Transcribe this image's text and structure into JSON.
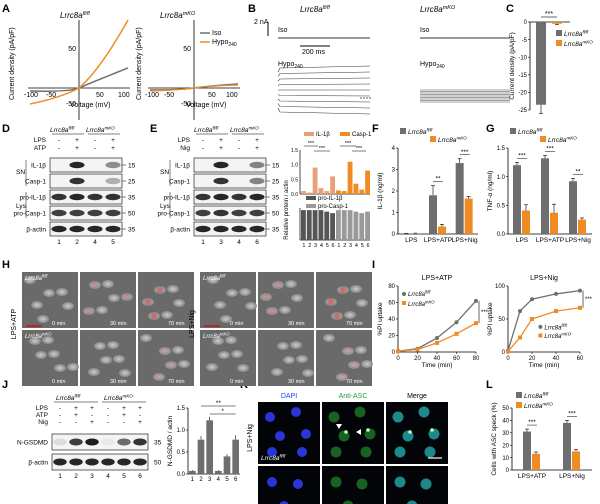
{
  "figure": {
    "panel_letters": [
      "A",
      "B",
      "C",
      "D",
      "E",
      "F",
      "G",
      "H",
      "I",
      "J",
      "K",
      "L"
    ],
    "genotypes": {
      "fl": "Lrrc8a",
      "fl_sup": "fl/fl",
      "ko": "Lrrc8a",
      "ko_sup": "mKO"
    },
    "colors": {
      "fl": "#6e6e6e",
      "ko": "#f08a24",
      "grid": "#999999"
    },
    "panelA": {
      "ylabel": "Current density (pA/pF)",
      "xlabel": "Voltage (mV)",
      "xticks": [
        "-100",
        "-50",
        "50",
        "100"
      ],
      "yticks": [
        "50",
        "-50"
      ],
      "legend": [
        "Iso",
        "Hypo"
      ],
      "legend_sub": "240"
    },
    "panelB": {
      "scale_v": "2 nA",
      "scale_t": "200 ms",
      "iso": "Iso",
      "hypo": "Hypo",
      "hypo_sub": "240"
    },
    "panelD": {
      "rows_top": [
        "LPS",
        "ATP"
      ],
      "signs": [
        [
          "-",
          "+",
          "-",
          "+"
        ],
        [
          "-",
          "+",
          "-",
          "+"
        ]
      ],
      "blots": [
        "IL-1β",
        "Casp-1",
        "pro-IL-1β",
        "pro-Casp-1",
        "β-actin"
      ],
      "groups": [
        "SN",
        "Lys"
      ],
      "mw": [
        "15",
        "25",
        "35",
        "50",
        "35"
      ],
      "lanes": [
        "1",
        "2",
        "4",
        "5"
      ]
    },
    "panelE": {
      "rows_top": [
        "LPS",
        "Nig"
      ],
      "signs": [
        [
          "-",
          "+",
          "-",
          "+"
        ],
        [
          "-",
          "+",
          "-",
          "+"
        ]
      ],
      "blots": [
        "IL-1β",
        "Casp-1",
        "pro-IL-1β",
        "pro-Casp-1",
        "β-actin"
      ],
      "groups": [
        "SN",
        "Lys"
      ],
      "mw": [
        "15",
        "25",
        "35",
        "50",
        "35"
      ],
      "lanes": [
        "1",
        "3",
        "4",
        "6"
      ],
      "chart_ylabel": "Relative protein / actin",
      "legend_top": [
        "IL-1β",
        "Casp-1"
      ],
      "legend_bottom": [
        "pro-IL-1β",
        "pro-Casp-1"
      ],
      "xticks": [
        "1",
        "2",
        "3",
        "4",
        "5",
        "6",
        "1",
        "2",
        "3",
        "4",
        "5",
        "6"
      ],
      "sig": [
        "***",
        "***",
        "***",
        "***"
      ]
    },
    "panelK": {
      "stains": [
        "DAPI",
        "Anti-ASC",
        "Merge"
      ],
      "treatment": "LPS+Nig"
    },
    "panelH": {
      "left_treatment": "LPS+ATP",
      "right_treatment": "LPS+Nig",
      "times": [
        "0 min",
        "30 min",
        "70 min"
      ]
    },
    "panelJ": {
      "rows_top": [
        "LPS",
        "ATP",
        "Nig"
      ],
      "signs": [
        [
          "-",
          "+",
          "+",
          "-",
          "+",
          "+"
        ],
        [
          "-",
          "+",
          "-",
          "-",
          "+",
          "-"
        ],
        [
          "-",
          "-",
          "+",
          "-",
          "-",
          "+"
        ]
      ],
      "blots": [
        "N-GSDMD",
        "β-actin"
      ],
      "mw": [
        "35",
        "50"
      ],
      "lanes": [
        "1",
        "2",
        "3",
        "4",
        "5",
        "6"
      ]
    }
  },
  "chart_data": [
    {
      "id": "C",
      "type": "bar",
      "categories": [
        "Lrrc8a fl/fl",
        "Lrrc8a mKO"
      ],
      "values": [
        -23.5,
        -0.5
      ],
      "errors": [
        2.5,
        0.2
      ],
      "ylabel": "Current density (pA/pF)",
      "yticks": [
        "0",
        "-5",
        "-10",
        "-15",
        "-20",
        "-25"
      ],
      "ylim": [
        -25,
        0
      ],
      "sig": "***",
      "legend": [
        "Lrrc8a fl/fl",
        "Lrrc8a mKO"
      ]
    },
    {
      "id": "F",
      "type": "bar",
      "categories": [
        "LPS",
        "LPS+ATP",
        "LPS+Nig"
      ],
      "series": [
        {
          "name": "Lrrc8a fl/fl",
          "values": [
            0.02,
            1.8,
            3.3
          ],
          "errors": [
            0.01,
            0.45,
            0.2
          ]
        },
        {
          "name": "Lrrc8a mKO",
          "values": [
            0.03,
            0.35,
            1.65
          ],
          "errors": [
            0.01,
            0.1,
            0.1
          ]
        }
      ],
      "ylabel": "IL-1β (ng/ml)",
      "yticks": [
        "0",
        "1",
        "2",
        "3",
        "4"
      ],
      "ylim": [
        0,
        4
      ],
      "sig": [
        "",
        "**",
        "***"
      ]
    },
    {
      "id": "G",
      "type": "bar",
      "categories": [
        "LPS",
        "LPS+ATP",
        "LPS+Nig"
      ],
      "series": [
        {
          "name": "Lrrc8a fl/fl",
          "values": [
            1.2,
            1.32,
            0.92
          ],
          "errors": [
            0.05,
            0.05,
            0.05
          ]
        },
        {
          "name": "Lrrc8a mKO",
          "values": [
            0.41,
            0.37,
            0.25
          ],
          "errors": [
            0.1,
            0.15,
            0.03
          ]
        }
      ],
      "ylabel": "TNF-α (ng/ml)",
      "yticks": [
        "0.0",
        "0.5",
        "1.0",
        "1.5"
      ],
      "ylim": [
        0,
        1.5
      ],
      "sig": [
        "***",
        "***",
        "**"
      ]
    },
    {
      "id": "I1",
      "type": "line",
      "title": "LPS+ATP",
      "x": [
        0,
        20,
        40,
        60,
        80
      ],
      "series": [
        {
          "name": "Lrrc8a fl/fl",
          "values": [
            1,
            4,
            17,
            36,
            62
          ]
        },
        {
          "name": "Lrrc8a mKO",
          "values": [
            1,
            3,
            11,
            22,
            35
          ]
        }
      ],
      "xlabel": "Time (min)",
      "ylabel": "%PI uptake",
      "xticks": [
        "0",
        "20",
        "40",
        "60",
        "80"
      ],
      "yticks": [
        "0",
        "20",
        "40",
        "60",
        "80"
      ],
      "ylim": [
        0,
        80
      ],
      "sig": "***"
    },
    {
      "id": "I2",
      "type": "line",
      "title": "LPS+Nig",
      "x": [
        0,
        10,
        20,
        40,
        60
      ],
      "series": [
        {
          "name": "Lrrc8a fl/fl",
          "values": [
            2,
            62,
            80,
            88,
            93
          ]
        },
        {
          "name": "Lrrc8a mKO",
          "values": [
            1,
            22,
            50,
            62,
            67
          ]
        }
      ],
      "xlabel": "Time (min)",
      "ylabel": "%PI uptake",
      "xticks": [
        "0",
        "20",
        "40",
        "60"
      ],
      "yticks": [
        "0",
        "50",
        "100"
      ],
      "ylim": [
        0,
        100
      ],
      "sig": "***",
      "legend": [
        "Lrrc8a fl/fl",
        "Lrrc8a mKO"
      ]
    },
    {
      "id": "E",
      "type": "bar",
      "categories": [
        "1",
        "2",
        "3",
        "4",
        "5",
        "6",
        "1",
        "2",
        "3",
        "4",
        "5",
        "6"
      ],
      "series": [
        {
          "name": "IL-1β",
          "values": [
            0.1,
            0.05,
            0.9,
            0.2,
            0.1,
            0.6,
            0,
            0,
            0,
            0,
            0,
            0
          ]
        },
        {
          "name": "Casp-1",
          "values": [
            0,
            0,
            0,
            0,
            0,
            0,
            0.12,
            0.1,
            1.1,
            0.35,
            0.15,
            0.8
          ]
        },
        {
          "name": "pro-IL-1β",
          "values": [
            1.0,
            1.0,
            1.0,
            1.0,
            0.95,
            0.9,
            0,
            0,
            0,
            0,
            0,
            0
          ]
        },
        {
          "name": "pro-Casp-1",
          "values": [
            0,
            0,
            0,
            0,
            0,
            0,
            1.0,
            1.0,
            1.0,
            0.95,
            0.9,
            0.95
          ]
        }
      ],
      "ylabel": "Relative protein / actin",
      "yticks": [
        "0.0",
        "0.5",
        "1.0",
        "1.5"
      ],
      "ylim": [
        0,
        1.5
      ],
      "sig": [
        "***",
        "***",
        "***",
        "***"
      ]
    },
    {
      "id": "J",
      "type": "bar",
      "categories": [
        "1",
        "2",
        "3",
        "4",
        "5",
        "6"
      ],
      "values": [
        0.07,
        0.78,
        1.22,
        0.07,
        0.4,
        0.78
      ],
      "errors": [
        0.02,
        0.08,
        0.08,
        0.02,
        0.05,
        0.1
      ],
      "ylabel": "N-GSDMD / actin",
      "yticks": [
        "0.0",
        "0.5",
        "1.0",
        "1.5"
      ],
      "ylim": [
        0,
        1.5
      ],
      "sig": [
        "*",
        "**"
      ]
    },
    {
      "id": "L",
      "type": "bar",
      "categories": [
        "LPS+ATP",
        "LPS+Nig"
      ],
      "series": [
        {
          "name": "Lrrc8a fl/fl",
          "values": [
            31,
            38
          ],
          "errors": [
            2,
            2
          ]
        },
        {
          "name": "Lrrc8a mKO",
          "values": [
            13,
            15
          ],
          "errors": [
            1.5,
            1.5
          ]
        }
      ],
      "ylabel": "Cells with ASC speck (%)",
      "yticks": [
        "0",
        "10",
        "20",
        "30",
        "40",
        "50"
      ],
      "ylim": [
        0,
        50
      ],
      "sig": [
        "***",
        "***"
      ],
      "legend": [
        "Lrrc8a fl/fl",
        "Lrrc8a mKO"
      ]
    }
  ]
}
